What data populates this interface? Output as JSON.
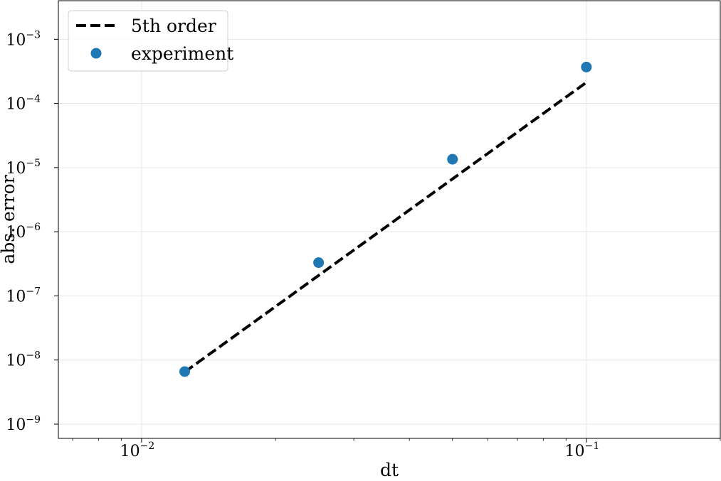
{
  "chart_data": {
    "type": "scatter",
    "xlabel": "dt",
    "ylabel": "abs. error",
    "xscale": "log",
    "yscale": "log",
    "xlim": [
      0.0065,
      0.2
    ],
    "ylim": [
      6e-10,
      0.004
    ],
    "grid": true,
    "legend_position": "top-left",
    "x_ticks": [
      {
        "value": 0.01,
        "base": "10",
        "exp": "−2"
      },
      {
        "value": 0.1,
        "base": "10",
        "exp": "−1"
      }
    ],
    "y_ticks": [
      {
        "value": 1e-09,
        "base": "10",
        "exp": "−9"
      },
      {
        "value": 1e-08,
        "base": "10",
        "exp": "−8"
      },
      {
        "value": 1e-07,
        "base": "10",
        "exp": "−7"
      },
      {
        "value": 1e-06,
        "base": "10",
        "exp": "−6"
      },
      {
        "value": 1e-05,
        "base": "10",
        "exp": "−5"
      },
      {
        "value": 0.0001,
        "base": "10",
        "exp": "−4"
      },
      {
        "value": 0.001,
        "base": "10",
        "exp": "−3"
      }
    ],
    "series": [
      {
        "name": "5th order",
        "kind": "line",
        "style": "dashed",
        "color": "#000000",
        "x": [
          0.0125,
          0.1
        ],
        "y": [
          6.5e-09,
          0.000213
        ]
      },
      {
        "name": "experiment",
        "kind": "scatter",
        "color": "#1f77b4",
        "x": [
          0.0125,
          0.025,
          0.05,
          0.1
        ],
        "y": [
          6.6e-09,
          3.3e-07,
          1.35e-05,
          0.00037
        ]
      }
    ]
  }
}
